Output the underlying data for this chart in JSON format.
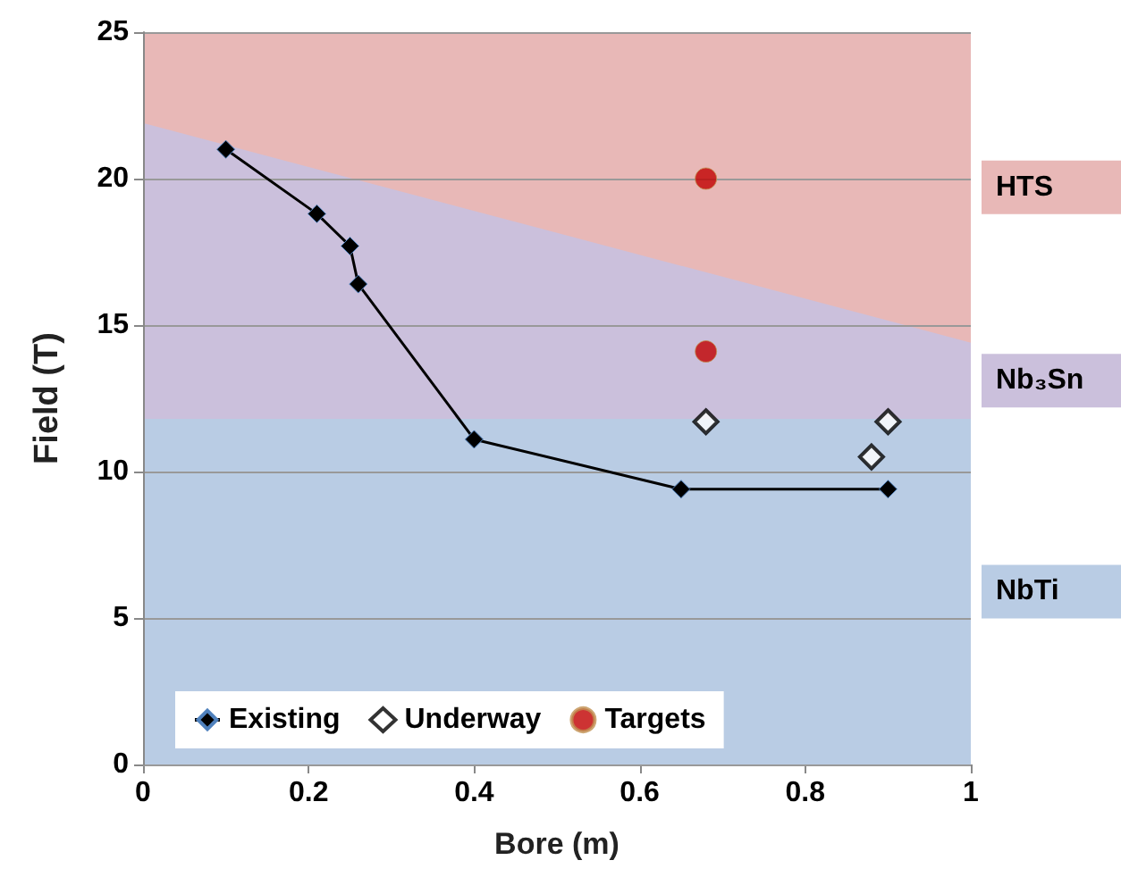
{
  "chart_data": {
    "type": "scatter",
    "xlabel": "Bore (m)",
    "ylabel": "Field (T)",
    "xlim": [
      0,
      1
    ],
    "xticks": [
      0,
      0.2,
      0.4,
      0.6,
      0.8,
      1
    ],
    "ylim": [
      0,
      25
    ],
    "yticks": [
      0,
      5,
      10,
      15,
      20,
      25
    ],
    "grid": "y",
    "legend": "bottom left",
    "series": [
      {
        "name": "HTS",
        "type": "area",
        "color": "#e8b8b7",
        "x": [
          0,
          1
        ],
        "values": [
          25,
          25
        ]
      },
      {
        "name": "Nb₃Sn",
        "type": "area",
        "color": "#cbc0dc",
        "x": [
          0,
          1
        ],
        "values": [
          21.9,
          14.4
        ]
      },
      {
        "name": "NbTi",
        "type": "area",
        "color": "#b9cce4",
        "x": [
          0,
          1
        ],
        "values": [
          11.8,
          11.8
        ]
      },
      {
        "name": "Existing",
        "type": "line",
        "color": "#000000",
        "marker": "diamond",
        "line_style": "solid",
        "x": [
          0.1,
          0.21,
          0.25,
          0.26,
          0.4,
          0.65,
          0.9
        ],
        "values": [
          21,
          18.8,
          17.7,
          16.4,
          11.1,
          9.4,
          9.4
        ]
      },
      {
        "name": "Underway",
        "color": "#ffffff",
        "marker": "diamond",
        "x": [
          0.68,
          0.88,
          0.9
        ],
        "values": [
          11.7,
          10.5,
          11.7
        ]
      },
      {
        "name": "Targets",
        "color": "#c00000",
        "marker": "circle",
        "x": [
          0.68,
          0.68
        ],
        "values": [
          20,
          14.1
        ]
      }
    ]
  }
}
